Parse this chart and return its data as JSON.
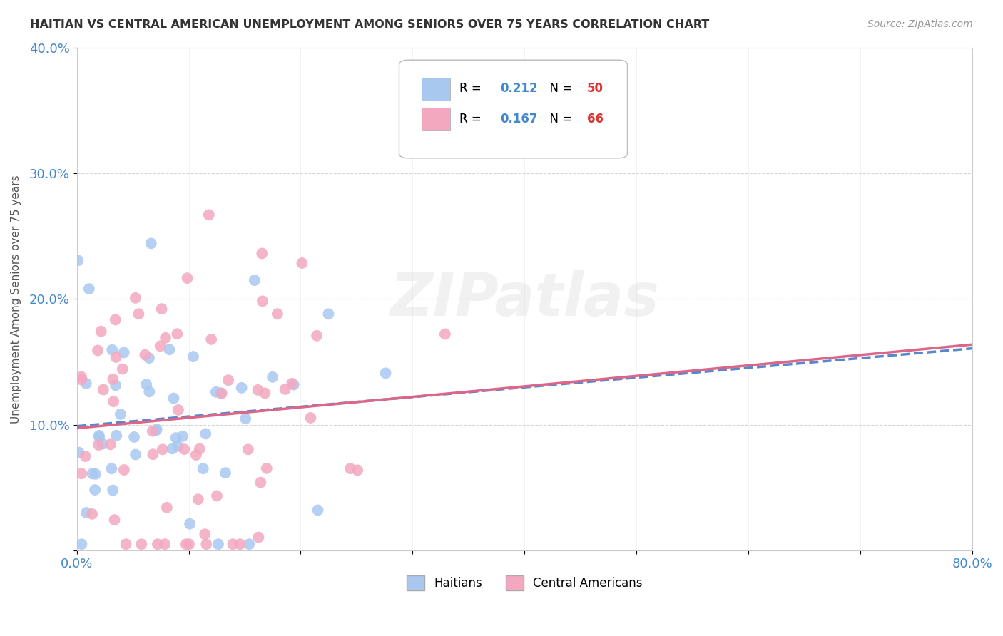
{
  "title": "HAITIAN VS CENTRAL AMERICAN UNEMPLOYMENT AMONG SENIORS OVER 75 YEARS CORRELATION CHART",
  "source": "Source: ZipAtlas.com",
  "ylabel": "Unemployment Among Seniors over 75 years",
  "xlim": [
    0.0,
    0.8
  ],
  "ylim": [
    0.0,
    0.4
  ],
  "haitian_R": 0.212,
  "haitian_N": 50,
  "central_R": 0.167,
  "central_N": 66,
  "haitian_color": "#a8c8f0",
  "central_color": "#f4a8c0",
  "haitian_line_color": "#5588cc",
  "central_line_color": "#dd6688",
  "watermark_text": "ZIPatlas",
  "background_color": "#ffffff",
  "grid_color": "#cccccc",
  "title_color": "#333333",
  "source_color": "#999999",
  "legend_R_color": "#4488cc",
  "legend_N_color": "#dd3333"
}
